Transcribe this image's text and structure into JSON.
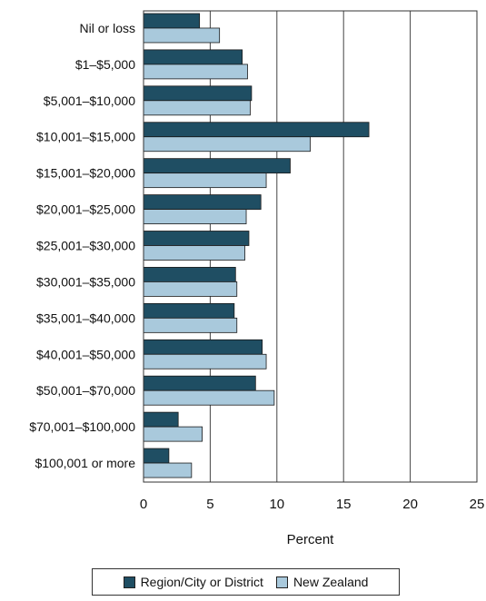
{
  "chart_data": {
    "type": "bar",
    "orientation": "horizontal",
    "categories": [
      "Nil or loss",
      "$1–$5,000",
      "$5,001–$10,000",
      "$10,001–$15,000",
      "$15,001–$20,000",
      "$20,001–$25,000",
      "$25,001–$30,000",
      "$30,001–$35,000",
      "$35,001–$40,000",
      "$40,001–$50,000",
      "$50,001–$70,000",
      "$70,001–$100,000",
      "$100,001 or more"
    ],
    "series": [
      {
        "name": "Region/City or District",
        "color": "#1f4e63",
        "values": [
          4.2,
          7.4,
          8.1,
          16.9,
          11.0,
          8.8,
          7.9,
          6.9,
          6.8,
          8.9,
          8.4,
          2.6,
          1.9
        ]
      },
      {
        "name": "New Zealand",
        "color": "#a9c9dc",
        "values": [
          5.7,
          7.8,
          8.0,
          12.5,
          9.2,
          7.7,
          7.6,
          7.0,
          7.0,
          9.2,
          9.8,
          4.4,
          3.6
        ]
      }
    ],
    "xlabel": "Percent",
    "xlim": [
      0,
      25
    ],
    "xticks": [
      0,
      5,
      10,
      15,
      20,
      25
    ],
    "grid": "vertical",
    "legend_position": "bottom"
  }
}
